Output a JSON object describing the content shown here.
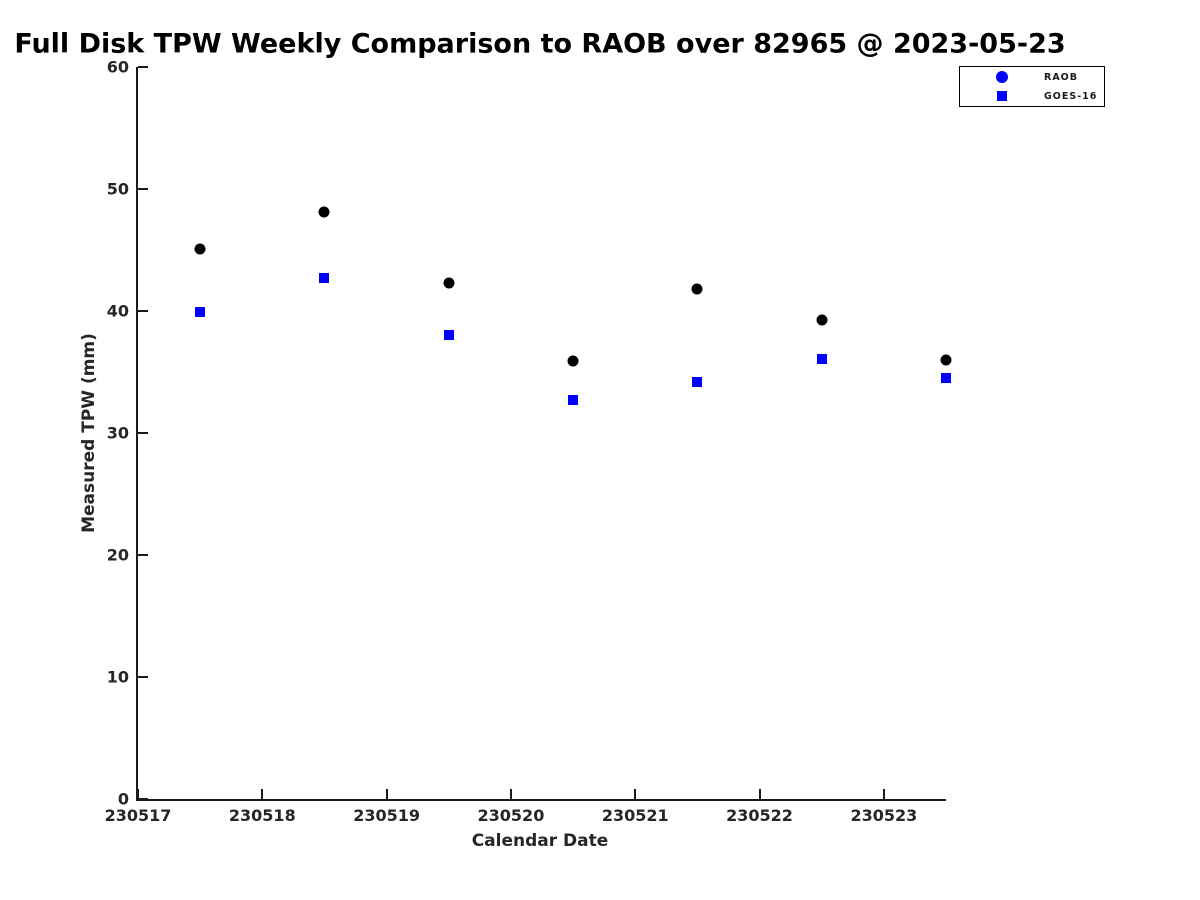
{
  "chart_data": {
    "type": "scatter",
    "title": "Full Disk TPW Weekly Comparison to RAOB over 82965 @ 2023-05-23",
    "xlabel": "Calendar Date",
    "ylabel": "Measured TPW (mm)",
    "xlim": [
      230517,
      230523.5
    ],
    "ylim": [
      0,
      60
    ],
    "xticks": [
      230517,
      230518,
      230519,
      230520,
      230521,
      230522,
      230523
    ],
    "xtick_labels": [
      "230517",
      "230518",
      "230519",
      "230520",
      "230521",
      "230522",
      "230523"
    ],
    "yticks": [
      0,
      10,
      20,
      30,
      40,
      50,
      60
    ],
    "ytick_labels": [
      "0",
      "10",
      "20",
      "30",
      "40",
      "50",
      "60"
    ],
    "grid": false,
    "legend_position": "top-right",
    "x": [
      230517.5,
      230518.5,
      230519.5,
      230520.5,
      230521.5,
      230522.5,
      230523.5
    ],
    "series": [
      {
        "name": "RAOB",
        "marker": "circle",
        "marker_color": "#000000",
        "legend_marker_color": "#0000ff",
        "values": [
          45.1,
          48.1,
          42.3,
          35.9,
          41.8,
          39.3,
          36.0
        ]
      },
      {
        "name": "GOES-16",
        "marker": "square",
        "marker_color": "#0000ff",
        "legend_marker_color": "#0000ff",
        "values": [
          39.9,
          42.7,
          38.0,
          32.7,
          34.2,
          36.1,
          34.5
        ]
      }
    ],
    "axis_color": "#1a1a1a",
    "text_color": "#262626",
    "background_color": "#ffffff"
  }
}
